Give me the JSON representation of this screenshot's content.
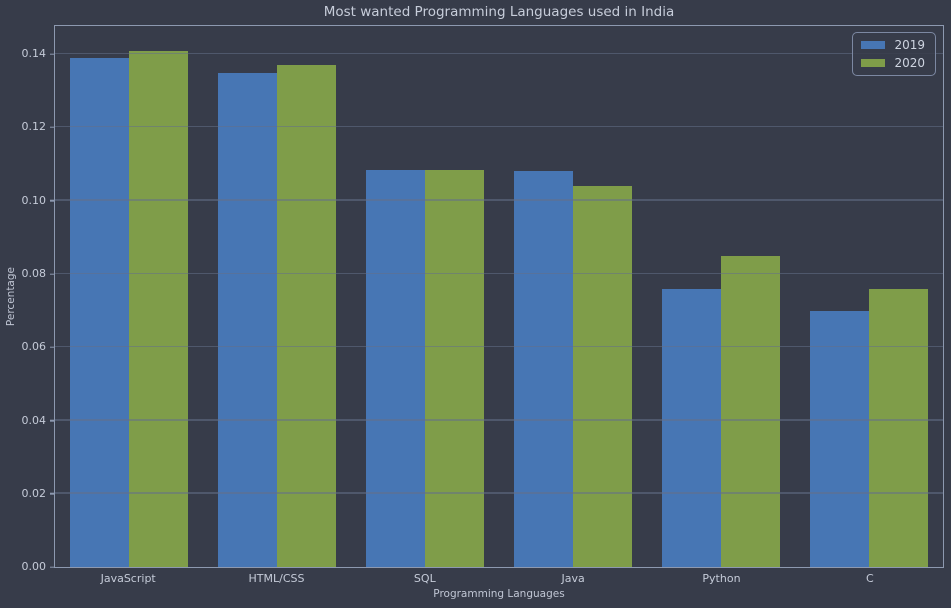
{
  "colors": {
    "background": "#373c4a",
    "grid": "#646f88",
    "spine": "#8d99b0",
    "text": "#c5cbd8",
    "series_2019": "#4776b4",
    "series_2020": "#7f9d49",
    "legend_border": "#7c88a2"
  },
  "chart_data": {
    "type": "bar",
    "title": "Most wanted Programming Languages used in India",
    "xlabel": "Programming Languages",
    "ylabel": "Percentage",
    "categories": [
      "JavaScript",
      "HTML/CSS",
      "SQL",
      "Java",
      "Python",
      "C"
    ],
    "series": [
      {
        "name": "2019",
        "color": "#4776b4",
        "values": [
          0.139,
          0.135,
          0.1085,
          0.108,
          0.076,
          0.07
        ]
      },
      {
        "name": "2020",
        "color": "#7f9d49",
        "values": [
          0.141,
          0.137,
          0.1085,
          0.104,
          0.085,
          0.076
        ]
      }
    ],
    "ylim": [
      0,
      0.1477
    ],
    "ytick_step": 0.02,
    "ytick_format_decimals": 2,
    "grid": "horizontal, drawn above bars",
    "legend_position": "upper right"
  }
}
